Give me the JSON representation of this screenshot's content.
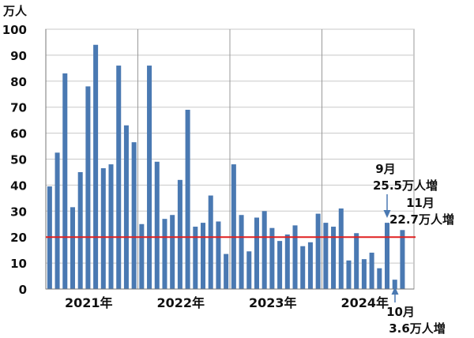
{
  "chart_data": {
    "type": "bar",
    "unit_label": "万人",
    "ylim": [
      0,
      100
    ],
    "y_ticks": [
      0,
      10,
      20,
      30,
      40,
      50,
      60,
      70,
      80,
      90,
      100
    ],
    "year_labels": [
      "2021年",
      "2022年",
      "2023年",
      "2024年"
    ],
    "months_per_year": 12,
    "values": [
      39.5,
      52.5,
      83,
      31.5,
      45,
      78,
      94,
      46.5,
      48,
      86,
      63,
      56.5,
      25,
      86,
      49,
      27,
      28.5,
      42,
      69,
      24,
      25.5,
      36,
      26,
      13.5,
      48,
      28.5,
      14.5,
      27.5,
      30,
      23.5,
      18.5,
      21,
      24.5,
      16.5,
      18,
      29,
      25.5,
      24,
      31,
      11,
      21.5,
      11.5,
      14,
      8,
      25.5,
      3.6,
      22.7
    ],
    "reference_line": 20,
    "bar_color": "#4a79b2",
    "reference_color": "#e02020",
    "annotations": [
      {
        "month": "9月",
        "value": "25.5万人増"
      },
      {
        "month": "11月",
        "value": "22.7万人増"
      },
      {
        "month": "10月",
        "value": "3.6万人増"
      }
    ],
    "grid": true
  }
}
